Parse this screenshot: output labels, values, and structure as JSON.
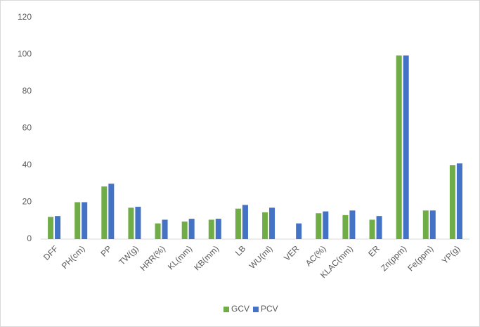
{
  "chart_data": {
    "type": "bar",
    "categories": [
      "DFF",
      "PH(cm)",
      "PP",
      "TW(g)",
      "HRR(%)",
      "KL(mm)",
      "KB(mm)",
      "LB",
      "WU(ml)",
      "VER",
      "AC(%)",
      "KLAC(mm)",
      "ER",
      "Zn(ppm)",
      "Fe(ppm)",
      "YP(g)"
    ],
    "series": [
      {
        "name": "GCV",
        "color": "#70ad47",
        "values": [
          12,
          20,
          28.5,
          17,
          8.5,
          9.5,
          10.5,
          16.5,
          14.5,
          null,
          14,
          13,
          10.5,
          99.5,
          15.5,
          40
        ]
      },
      {
        "name": "PCV",
        "color": "#4472c4",
        "values": [
          12.5,
          20,
          30,
          17.5,
          10.5,
          11,
          11,
          18.5,
          17,
          8.5,
          15,
          15.5,
          12.5,
          99.5,
          15.5,
          41
        ]
      }
    ],
    "ylim": [
      0,
      120
    ],
    "yticks": [
      0,
      20,
      40,
      60,
      80,
      100,
      120
    ],
    "grid": false,
    "legend": "bottom"
  }
}
